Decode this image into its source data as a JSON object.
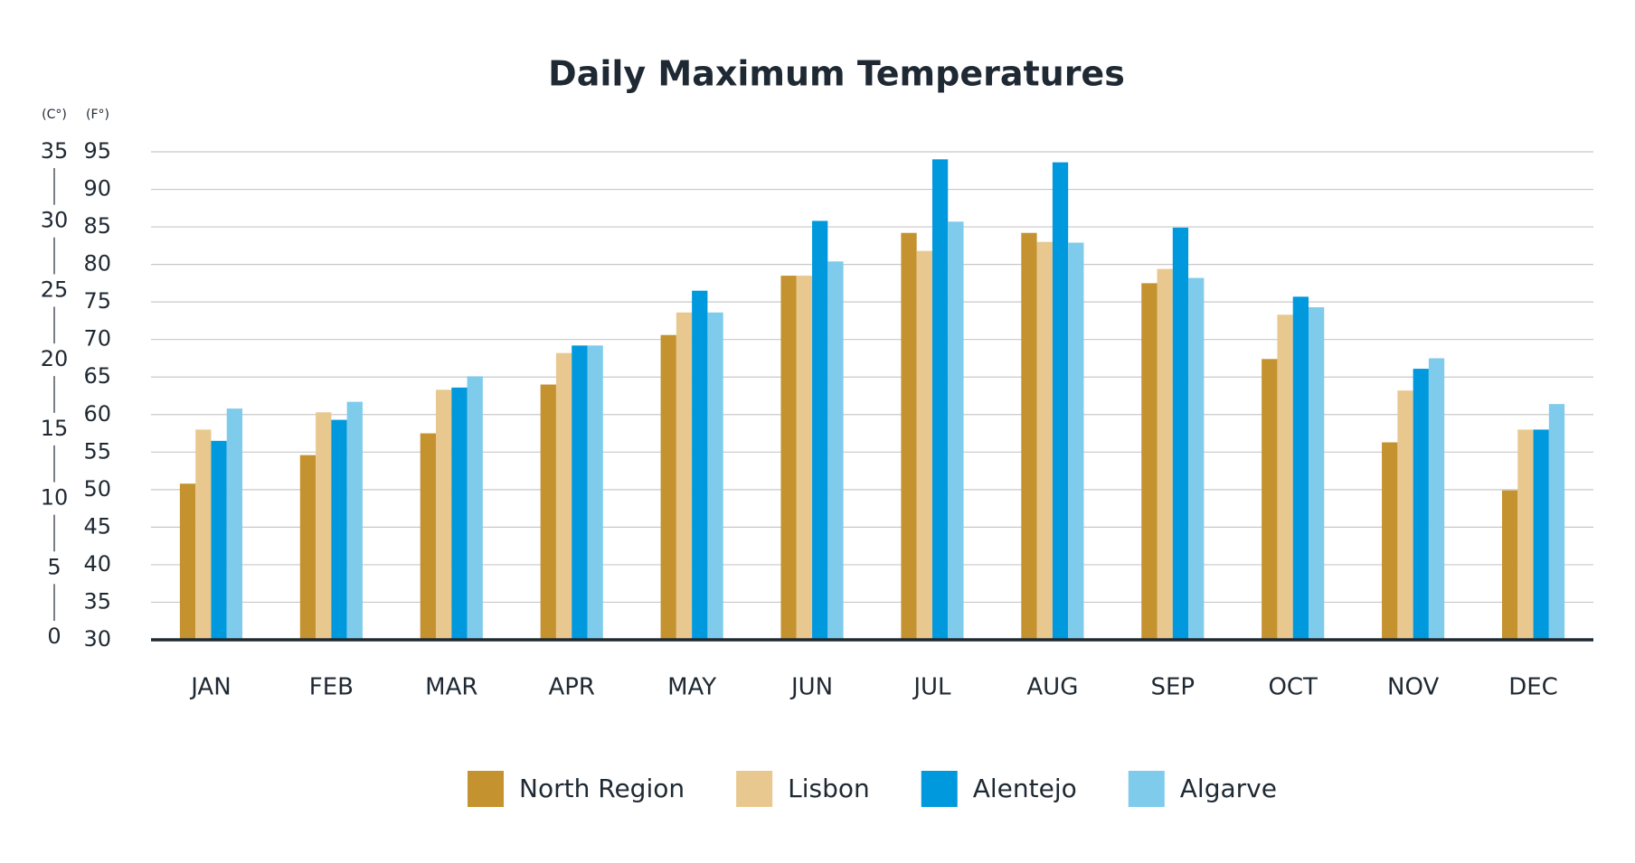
{
  "chart_data": {
    "type": "bar",
    "title": "Daily Maximum Temperatures",
    "y_label": "(F°)",
    "y2_label": "(C°)",
    "categories": [
      "JAN",
      "FEB",
      "MAR",
      "APR",
      "MAY",
      "JUN",
      "JUL",
      "AUG",
      "SEP",
      "OCT",
      "NOV",
      "DEC"
    ],
    "series": [
      {
        "name": "North Region",
        "color": "#c4922f",
        "values": [
          50.8,
          54.6,
          57.5,
          64,
          70.6,
          78.5,
          84.2,
          84.2,
          77.5,
          67.4,
          56.3,
          49.9
        ]
      },
      {
        "name": "Lisbon",
        "color": "#e8c88f",
        "values": [
          58,
          60.3,
          63.3,
          68.2,
          73.6,
          78.5,
          81.8,
          83,
          79.4,
          73.3,
          63.2,
          58
        ]
      },
      {
        "name": "Alentejo",
        "color": "#0099dd",
        "values": [
          56.5,
          59.3,
          63.6,
          69.2,
          76.5,
          85.8,
          94,
          93.6,
          84.9,
          75.7,
          66.1,
          58
        ]
      },
      {
        "name": "Algarve",
        "color": "#7ecbeb",
        "values": [
          60.8,
          61.7,
          65.1,
          69.2,
          73.6,
          80.4,
          85.7,
          82.9,
          78.2,
          74.3,
          67.5,
          61.4
        ]
      }
    ],
    "ylim": [
      30,
      95
    ],
    "yticks": [
      30,
      35,
      40,
      45,
      50,
      55,
      60,
      65,
      70,
      75,
      80,
      85,
      90,
      95
    ],
    "y2lim": [
      0,
      35
    ],
    "y2ticks": [
      0,
      5,
      10,
      15,
      20,
      25,
      30,
      35
    ],
    "grid": true,
    "legend": "bottom"
  }
}
